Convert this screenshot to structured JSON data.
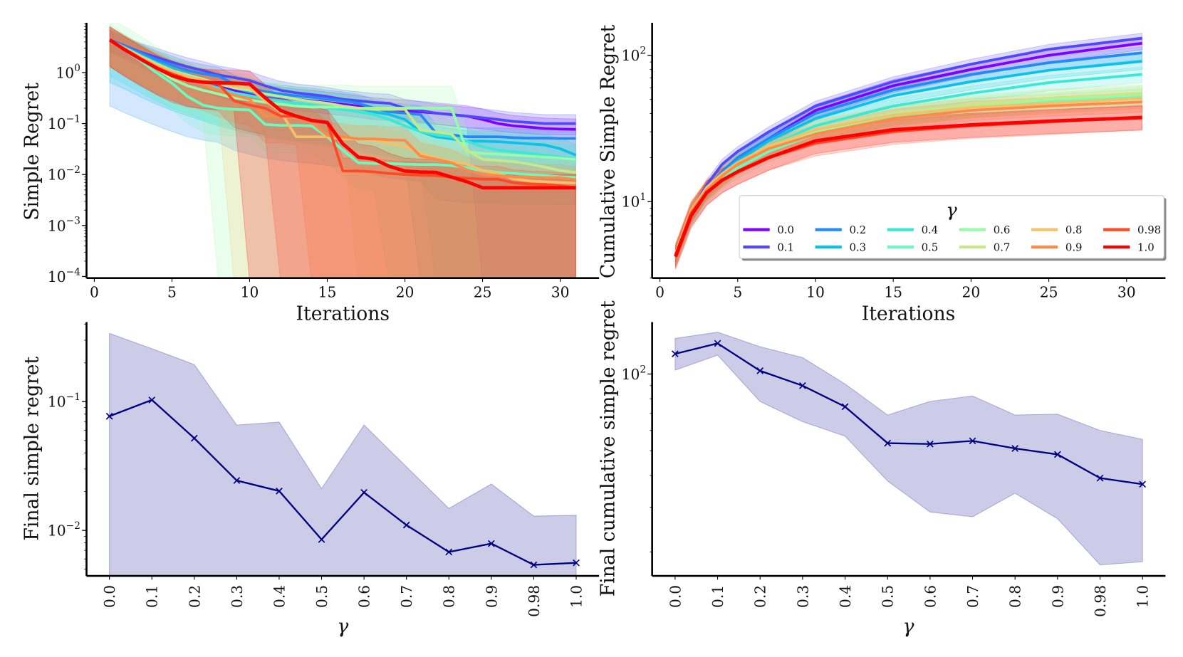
{
  "chart_data": [
    {
      "type": "line",
      "xlabel": "Iterations",
      "ylabel": "Simple Regret",
      "yscale": "log",
      "xlim": [
        -0.5,
        32.5
      ],
      "ylim": [
        9.3e-05,
        9.5
      ],
      "xticks": [
        0,
        5,
        10,
        15,
        20,
        25,
        30
      ],
      "yticks": [
        1,
        0.1,
        0.01,
        0.001,
        0.0001
      ],
      "ytick_labels": [
        [
          "10",
          "0"
        ],
        [
          "10",
          "−1"
        ],
        [
          "10",
          "−2"
        ],
        [
          "10",
          "−3"
        ],
        [
          "10",
          "−4"
        ]
      ],
      "x": [
        1,
        2,
        3,
        4,
        5,
        6,
        7,
        8,
        9,
        10,
        11,
        12,
        13,
        14,
        15,
        16,
        17,
        18,
        19,
        20,
        21,
        22,
        23,
        24,
        25,
        26,
        27,
        28,
        29,
        30,
        31
      ],
      "shaded_band": "variability around each series (lower edge reaches below the axis from the iteration noted)",
      "series": [
        {
          "name": "0.0",
          "color": "#8000ff",
          "band_ratio": [
            0.6,
            1.6
          ],
          "band_floor_from": 25,
          "values": [
            4.3,
            3.0,
            2.2,
            1.5,
            1.1,
            0.9,
            0.7,
            0.55,
            0.45,
            0.4,
            0.35,
            0.32,
            0.3,
            0.28,
            0.26,
            0.24,
            0.22,
            0.2,
            0.19,
            0.18,
            0.17,
            0.16,
            0.15,
            0.14,
            0.12,
            0.1,
            0.09,
            0.085,
            0.08,
            0.078,
            0.077
          ]
        },
        {
          "name": "0.1",
          "color": "#5148fc",
          "band_ratio": [
            0.6,
            1.5
          ],
          "band_floor_from": null,
          "values": [
            4.4,
            3.3,
            2.5,
            2.0,
            1.6,
            1.3,
            1.1,
            0.9,
            0.8,
            0.7,
            0.55,
            0.45,
            0.4,
            0.37,
            0.34,
            0.3,
            0.28,
            0.26,
            0.25,
            0.2,
            0.18,
            0.16,
            0.15,
            0.14,
            0.13,
            0.12,
            0.11,
            0.105,
            0.1,
            0.1,
            0.1
          ]
        },
        {
          "name": "0.2",
          "color": "#238af5",
          "band_ratio": [
            0.05,
            1.5
          ],
          "band_floor_from": null,
          "values": [
            4.4,
            3.2,
            2.4,
            1.8,
            1.4,
            1.1,
            0.95,
            0.85,
            0.6,
            0.5,
            0.42,
            0.38,
            0.35,
            0.33,
            0.3,
            0.28,
            0.25,
            0.2,
            0.17,
            0.16,
            0.15,
            0.065,
            0.06,
            0.055,
            0.055,
            0.055,
            0.053,
            0.052,
            0.052,
            0.051,
            0.051
          ]
        },
        {
          "name": "0.3",
          "color": "#0bc1e8",
          "band_ratio": [
            0.15,
            1.6
          ],
          "band_floor_from": 21,
          "values": [
            4.3,
            3.1,
            2.2,
            1.6,
            1.2,
            0.95,
            0.75,
            0.6,
            0.5,
            0.42,
            0.36,
            0.33,
            0.3,
            0.27,
            0.25,
            0.22,
            0.2,
            0.17,
            0.15,
            0.12,
            0.07,
            0.055,
            0.05,
            0.045,
            0.045,
            0.044,
            0.042,
            0.04,
            0.038,
            0.032,
            0.024
          ]
        },
        {
          "name": "0.4",
          "color": "#3ae8d6",
          "band_ratio": [
            0.2,
            1.8
          ],
          "band_floor_from": 22,
          "values": [
            4.3,
            3.0,
            2.0,
            1.4,
            1.0,
            0.8,
            0.6,
            0.5,
            0.4,
            0.35,
            0.3,
            0.27,
            0.25,
            0.23,
            0.2,
            0.19,
            0.17,
            0.15,
            0.12,
            0.09,
            0.07,
            0.06,
            0.055,
            0.045,
            0.035,
            0.03,
            0.028,
            0.026,
            0.024,
            0.022,
            0.02
          ]
        },
        {
          "name": "0.5",
          "color": "#68fcc1",
          "band_ratio": [
            0.3,
            2.0
          ],
          "band_floor_from": 19,
          "values": [
            4.3,
            2.7,
            1.7,
            1.0,
            0.62,
            0.34,
            0.23,
            0.2,
            0.19,
            0.185,
            0.096,
            0.092,
            0.092,
            0.09,
            0.055,
            0.03,
            0.017,
            0.0165,
            0.0165,
            0.016,
            0.0157,
            0.0157,
            0.015,
            0.0135,
            0.012,
            0.011,
            0.0105,
            0.01,
            0.0095,
            0.009,
            0.0088
          ]
        },
        {
          "name": "0.6",
          "color": "#97fca7",
          "band_ratio": [
            0.3,
            2.7
          ],
          "band_floor_from": 8,
          "values": [
            4.3,
            2.9,
            1.9,
            1.2,
            0.75,
            0.55,
            0.45,
            0.38,
            0.32,
            0.29,
            0.26,
            0.24,
            0.22,
            0.21,
            0.21,
            0.21,
            0.2,
            0.2,
            0.2,
            0.2,
            0.2,
            0.2,
            0.2,
            0.028,
            0.026,
            0.025,
            0.024,
            0.023,
            0.022,
            0.021,
            0.0197
          ]
        },
        {
          "name": "0.7",
          "color": "#c5e88a",
          "band_ratio": [
            0.3,
            1.6
          ],
          "band_floor_from": 17,
          "values": [
            4.3,
            3.0,
            2.1,
            1.5,
            1.1,
            0.9,
            0.75,
            0.6,
            0.5,
            0.45,
            0.38,
            0.34,
            0.3,
            0.27,
            0.25,
            0.22,
            0.2,
            0.19,
            0.19,
            0.19,
            0.075,
            0.068,
            0.062,
            0.03,
            0.02,
            0.019,
            0.018,
            0.016,
            0.014,
            0.012,
            0.011
          ]
        },
        {
          "name": "0.8",
          "color": "#f3c16a",
          "band_ratio": [
            0.3,
            1.8
          ],
          "band_floor_from": 9,
          "values": [
            4.3,
            2.9,
            2.0,
            1.4,
            1.05,
            0.85,
            0.72,
            0.62,
            0.55,
            0.5,
            0.28,
            0.17,
            0.055,
            0.055,
            0.055,
            0.05,
            0.05,
            0.048,
            0.04,
            0.036,
            0.026,
            0.021,
            0.018,
            0.016,
            0.012,
            0.0105,
            0.0082,
            0.0075,
            0.0072,
            0.007,
            0.0068
          ]
        },
        {
          "name": "0.9",
          "color": "#ff8a48",
          "band_ratio": [
            0.3,
            1.8
          ],
          "band_floor_from": 14,
          "values": [
            4.37,
            2.9,
            1.9,
            1.3,
            0.95,
            0.75,
            0.6,
            0.45,
            0.36,
            0.3,
            0.14,
            0.14,
            0.13,
            0.105,
            0.059,
            0.055,
            0.05,
            0.05,
            0.048,
            0.047,
            0.023,
            0.02,
            0.017,
            0.0123,
            0.01,
            0.0095,
            0.0089,
            0.0089,
            0.0087,
            0.0087,
            0.0079
          ]
        },
        {
          "name": "0.98",
          "color": "#ff4824",
          "band_ratio": [
            0.3,
            1.8
          ],
          "band_floor_from": 12,
          "values": [
            4.37,
            2.8,
            1.85,
            1.25,
            0.95,
            0.73,
            0.65,
            0.59,
            0.28,
            0.23,
            0.2,
            0.14,
            0.14,
            0.117,
            0.105,
            0.0117,
            0.0117,
            0.0113,
            0.0105,
            0.01,
            0.0097,
            0.0095,
            0.0089,
            0.0085,
            0.0081,
            0.0081,
            0.0069,
            0.0065,
            0.0064,
            0.006,
            0.0055
          ]
        },
        {
          "name": "1.0",
          "color": "#ff0000",
          "band_ratio": [
            0.3,
            1.8
          ],
          "band_floor_from": 10,
          "values": [
            4.37,
            2.75,
            1.82,
            1.23,
            0.87,
            0.71,
            0.65,
            0.63,
            0.62,
            0.6,
            0.32,
            0.18,
            0.14,
            0.115,
            0.105,
            0.04,
            0.022,
            0.02,
            0.0145,
            0.0117,
            0.0112,
            0.011,
            0.0089,
            0.0072,
            0.0055,
            0.0055,
            0.0055,
            0.0055,
            0.0055,
            0.0055,
            0.0055
          ]
        }
      ]
    },
    {
      "type": "line",
      "xlabel": "Iterations",
      "ylabel": "Cumulative Simple Regret",
      "yscale": "log",
      "xlim": [
        -0.5,
        32.5
      ],
      "ylim": [
        3.0,
        167
      ],
      "xticks": [
        0,
        5,
        10,
        15,
        20,
        25,
        30
      ],
      "yticks": [
        10,
        100
      ],
      "ytick_labels": [
        [
          "10",
          "1"
        ],
        [
          "10",
          "2"
        ]
      ],
      "x": [
        1,
        2,
        3,
        4,
        5,
        7,
        10,
        15,
        20,
        25,
        31
      ],
      "legend": {
        "title": "γ",
        "position": "lower-right",
        "columns": 6
      },
      "series": [
        {
          "name": "0.0",
          "color": "#8000ff",
          "band_ratio": [
            0.9,
            1.1
          ],
          "values": [
            4.3,
            8,
            12,
            16,
            20,
            27,
            42,
            62,
            80,
            100,
            121
          ]
        },
        {
          "name": "0.1",
          "color": "#5148fc",
          "band_ratio": [
            0.9,
            1.08
          ],
          "values": [
            4.4,
            8.5,
            13,
            18,
            22,
            30,
            45,
            66,
            87,
            110,
            131
          ]
        },
        {
          "name": "0.2",
          "color": "#238af5",
          "band_ratio": [
            0.9,
            1.1
          ],
          "values": [
            4.3,
            8,
            12,
            16,
            20,
            27,
            40,
            58,
            74,
            89,
            104
          ]
        },
        {
          "name": "0.3",
          "color": "#0bc1e8",
          "band_ratio": [
            0.88,
            1.12
          ],
          "values": [
            4.3,
            8,
            12,
            15.5,
            19,
            26,
            37,
            53,
            66,
            79,
            91
          ]
        },
        {
          "name": "0.4",
          "color": "#3ae8d6",
          "band_ratio": [
            0.88,
            1.12
          ],
          "values": [
            4.3,
            8,
            12,
            15,
            18,
            24,
            33,
            45,
            55,
            65,
            74
          ]
        },
        {
          "name": "0.5",
          "color": "#68fcc1",
          "band_ratio": [
            0.85,
            1.15
          ],
          "values": [
            4.2,
            8,
            11.5,
            14.5,
            17,
            22,
            29,
            38,
            44,
            48,
            53
          ]
        },
        {
          "name": "0.6",
          "color": "#97fca7",
          "band_ratio": [
            0.85,
            1.15
          ],
          "values": [
            4.3,
            8.5,
            12,
            15,
            18,
            23,
            30,
            39,
            45,
            50,
            54
          ]
        },
        {
          "name": "0.7",
          "color": "#c5e88a",
          "band_ratio": [
            0.85,
            1.15
          ],
          "values": [
            4.3,
            8.5,
            12,
            15,
            18,
            23,
            31,
            40,
            46,
            51,
            55
          ]
        },
        {
          "name": "0.8",
          "color": "#f3c16a",
          "band_ratio": [
            0.85,
            1.15
          ],
          "values": [
            4.4,
            8.7,
            12.5,
            15.5,
            18.5,
            24,
            31,
            39,
            44,
            47,
            51
          ]
        },
        {
          "name": "0.9",
          "color": "#ff8a48",
          "band_ratio": [
            0.85,
            1.15
          ],
          "values": [
            4.3,
            8.5,
            12,
            15,
            18,
            23,
            29,
            37,
            42,
            45,
            48
          ]
        },
        {
          "name": "0.98",
          "color": "#ff4824",
          "band_ratio": [
            0.82,
            1.2
          ],
          "values": [
            4.3,
            8.3,
            11.5,
            14,
            16,
            20,
            25,
            30,
            33,
            35,
            38
          ]
        },
        {
          "name": "1.0",
          "color": "#ff0000",
          "band_ratio": [
            0.82,
            1.2
          ],
          "values": [
            4.2,
            8,
            11.5,
            14,
            16,
            20,
            26,
            31,
            33.5,
            35.5,
            37.5
          ]
        }
      ]
    },
    {
      "type": "line",
      "xlabel": "γ",
      "ylabel": "Final simple regret",
      "yscale": "log",
      "ylim": [
        0.00443,
        0.415
      ],
      "yticks": [
        0.1,
        0.01
      ],
      "ytick_labels": [
        [
          "10",
          "−1"
        ],
        [
          "10",
          "−2"
        ]
      ],
      "categories": [
        "0.0",
        "0.1",
        "0.2",
        "0.3",
        "0.4",
        "0.5",
        "0.6",
        "0.7",
        "0.8",
        "0.9",
        "0.98",
        "1.0"
      ],
      "line_color": "#000080",
      "band_color": "#8080c8",
      "marker": "x",
      "values": [
        0.077,
        0.103,
        0.052,
        0.0244,
        0.0202,
        0.0085,
        0.0197,
        0.011,
        0.0068,
        0.0079,
        0.0054,
        0.0056
      ],
      "upper": [
        0.339,
        0.258,
        0.194,
        0.0658,
        0.0694,
        0.0211,
        0.0658,
        0.0312,
        0.0148,
        0.0229,
        0.0129,
        0.0131
      ],
      "lower": [
        0.00443,
        0.00443,
        0.00443,
        0.00443,
        0.00443,
        0.00443,
        0.00443,
        0.00443,
        0.00443,
        0.00443,
        0.00443,
        0.00443
      ]
    },
    {
      "type": "line",
      "xlabel": "γ",
      "ylabel": "Final cumulative simple regret",
      "yscale": "log",
      "ylim": [
        16.1,
        160
      ],
      "yticks": [
        100
      ],
      "ytick_labels": [
        [
          "10",
          "2"
        ]
      ],
      "categories": [
        "0.0",
        "0.1",
        "0.2",
        "0.3",
        "0.4",
        "0.5",
        "0.6",
        "0.7",
        "0.8",
        "0.9",
        "0.98",
        "1.0"
      ],
      "line_color": "#000080",
      "band_color": "#8080c8",
      "marker": "x",
      "values": [
        120,
        132,
        103,
        90,
        74.4,
        53.5,
        53.1,
        54.6,
        51,
        48.3,
        39,
        36.9
      ],
      "upper": [
        138,
        146,
        128,
        116,
        91.4,
        69,
        78,
        82,
        69,
        69.5,
        60,
        55.4
      ],
      "lower": [
        103.5,
        118.7,
        78,
        65,
        57,
        38,
        28.7,
        27.5,
        34,
        27,
        17.8,
        18.3
      ]
    }
  ]
}
